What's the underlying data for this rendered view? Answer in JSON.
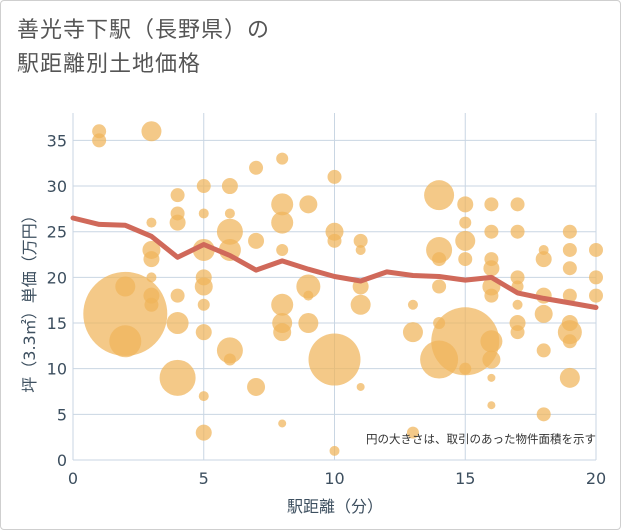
{
  "title": {
    "line1": "善光寺下駅（長野県）の",
    "line2": "駅距離別土地価格"
  },
  "chart_data": {
    "type": "scatter",
    "title": "善光寺下駅（長野県）の駅距離別土地価格",
    "xlabel": "駅距離（分）",
    "ylabel": "坪（3.3㎡）単価（万円）",
    "xlim": [
      0,
      20
    ],
    "ylim": [
      0,
      38
    ],
    "xticks": [
      0,
      5,
      10,
      15,
      20
    ],
    "yticks": [
      0,
      5,
      10,
      15,
      20,
      25,
      30,
      35
    ],
    "grid": true,
    "note": "円の大きさは、取引のあった物件面積を示す",
    "colors": {
      "bubble": "#f0b45a",
      "trend": "#d0695a",
      "grid": "#c9d6e3"
    },
    "bubbles": [
      {
        "x": 1,
        "y": 36,
        "s": 7
      },
      {
        "x": 1,
        "y": 35,
        "s": 7
      },
      {
        "x": 2,
        "y": 16,
        "s": 42
      },
      {
        "x": 2,
        "y": 13,
        "s": 16
      },
      {
        "x": 2,
        "y": 19,
        "s": 10
      },
      {
        "x": 3,
        "y": 36,
        "s": 10
      },
      {
        "x": 3,
        "y": 26,
        "s": 5
      },
      {
        "x": 3,
        "y": 23,
        "s": 9
      },
      {
        "x": 3,
        "y": 22,
        "s": 8
      },
      {
        "x": 3,
        "y": 20,
        "s": 5
      },
      {
        "x": 3,
        "y": 18,
        "s": 8
      },
      {
        "x": 3,
        "y": 17,
        "s": 7
      },
      {
        "x": 4,
        "y": 29,
        "s": 7
      },
      {
        "x": 4,
        "y": 27,
        "s": 7
      },
      {
        "x": 4,
        "y": 26,
        "s": 8
      },
      {
        "x": 4,
        "y": 18,
        "s": 7
      },
      {
        "x": 4,
        "y": 15,
        "s": 11
      },
      {
        "x": 4,
        "y": 9,
        "s": 18
      },
      {
        "x": 5,
        "y": 30,
        "s": 7
      },
      {
        "x": 5,
        "y": 27,
        "s": 5
      },
      {
        "x": 5,
        "y": 23,
        "s": 11
      },
      {
        "x": 5,
        "y": 20,
        "s": 8
      },
      {
        "x": 5,
        "y": 19,
        "s": 9
      },
      {
        "x": 5,
        "y": 17,
        "s": 6
      },
      {
        "x": 5,
        "y": 14,
        "s": 8
      },
      {
        "x": 5,
        "y": 7,
        "s": 5
      },
      {
        "x": 5,
        "y": 3,
        "s": 8
      },
      {
        "x": 6,
        "y": 30,
        "s": 8
      },
      {
        "x": 6,
        "y": 27,
        "s": 5
      },
      {
        "x": 6,
        "y": 25,
        "s": 13
      },
      {
        "x": 6,
        "y": 23,
        "s": 11
      },
      {
        "x": 6,
        "y": 12,
        "s": 13
      },
      {
        "x": 6,
        "y": 11,
        "s": 6
      },
      {
        "x": 7,
        "y": 32,
        "s": 7
      },
      {
        "x": 7,
        "y": 24,
        "s": 8
      },
      {
        "x": 7,
        "y": 8,
        "s": 9
      },
      {
        "x": 8,
        "y": 33,
        "s": 6
      },
      {
        "x": 8,
        "y": 28,
        "s": 11
      },
      {
        "x": 8,
        "y": 26,
        "s": 11
      },
      {
        "x": 8,
        "y": 23,
        "s": 6
      },
      {
        "x": 8,
        "y": 17,
        "s": 11
      },
      {
        "x": 8,
        "y": 15,
        "s": 10
      },
      {
        "x": 8,
        "y": 14,
        "s": 9
      },
      {
        "x": 8,
        "y": 4,
        "s": 4
      },
      {
        "x": 9,
        "y": 28,
        "s": 9
      },
      {
        "x": 9,
        "y": 19,
        "s": 12
      },
      {
        "x": 9,
        "y": 18,
        "s": 5
      },
      {
        "x": 9,
        "y": 15,
        "s": 10
      },
      {
        "x": 10,
        "y": 31,
        "s": 7
      },
      {
        "x": 10,
        "y": 25,
        "s": 9
      },
      {
        "x": 10,
        "y": 24,
        "s": 7
      },
      {
        "x": 10,
        "y": 11,
        "s": 26
      },
      {
        "x": 10,
        "y": 1,
        "s": 5
      },
      {
        "x": 11,
        "y": 24,
        "s": 7
      },
      {
        "x": 11,
        "y": 23,
        "s": 5
      },
      {
        "x": 11,
        "y": 19,
        "s": 8
      },
      {
        "x": 11,
        "y": 17,
        "s": 10
      },
      {
        "x": 11,
        "y": 8,
        "s": 4
      },
      {
        "x": 13,
        "y": 17,
        "s": 5
      },
      {
        "x": 13,
        "y": 14,
        "s": 10
      },
      {
        "x": 13,
        "y": 3,
        "s": 6
      },
      {
        "x": 14,
        "y": 29,
        "s": 15
      },
      {
        "x": 14,
        "y": 23,
        "s": 13
      },
      {
        "x": 14,
        "y": 22,
        "s": 7
      },
      {
        "x": 14,
        "y": 19,
        "s": 7
      },
      {
        "x": 14,
        "y": 15,
        "s": 6
      },
      {
        "x": 14,
        "y": 11,
        "s": 19
      },
      {
        "x": 15,
        "y": 28,
        "s": 8
      },
      {
        "x": 15,
        "y": 26,
        "s": 6
      },
      {
        "x": 15,
        "y": 24,
        "s": 10
      },
      {
        "x": 15,
        "y": 22,
        "s": 7
      },
      {
        "x": 15,
        "y": 13,
        "s": 34
      },
      {
        "x": 15,
        "y": 10,
        "s": 6
      },
      {
        "x": 16,
        "y": 28,
        "s": 7
      },
      {
        "x": 16,
        "y": 25,
        "s": 7
      },
      {
        "x": 16,
        "y": 22,
        "s": 7
      },
      {
        "x": 16,
        "y": 21,
        "s": 8
      },
      {
        "x": 16,
        "y": 19,
        "s": 9
      },
      {
        "x": 16,
        "y": 18,
        "s": 7
      },
      {
        "x": 16,
        "y": 13,
        "s": 11
      },
      {
        "x": 16,
        "y": 11,
        "s": 9
      },
      {
        "x": 16,
        "y": 9,
        "s": 4
      },
      {
        "x": 16,
        "y": 6,
        "s": 4
      },
      {
        "x": 17,
        "y": 28,
        "s": 7
      },
      {
        "x": 17,
        "y": 25,
        "s": 7
      },
      {
        "x": 17,
        "y": 20,
        "s": 7
      },
      {
        "x": 17,
        "y": 19,
        "s": 6
      },
      {
        "x": 17,
        "y": 17,
        "s": 5
      },
      {
        "x": 17,
        "y": 15,
        "s": 8
      },
      {
        "x": 17,
        "y": 14,
        "s": 7
      },
      {
        "x": 18,
        "y": 23,
        "s": 5
      },
      {
        "x": 18,
        "y": 22,
        "s": 8
      },
      {
        "x": 18,
        "y": 18,
        "s": 8
      },
      {
        "x": 18,
        "y": 16,
        "s": 9
      },
      {
        "x": 18,
        "y": 12,
        "s": 7
      },
      {
        "x": 18,
        "y": 5,
        "s": 7
      },
      {
        "x": 19,
        "y": 25,
        "s": 7
      },
      {
        "x": 19,
        "y": 23,
        "s": 7
      },
      {
        "x": 19,
        "y": 21,
        "s": 7
      },
      {
        "x": 19,
        "y": 18,
        "s": 7
      },
      {
        "x": 19,
        "y": 15,
        "s": 8
      },
      {
        "x": 19,
        "y": 14,
        "s": 12
      },
      {
        "x": 19,
        "y": 13,
        "s": 7
      },
      {
        "x": 19,
        "y": 9,
        "s": 10
      },
      {
        "x": 20,
        "y": 23,
        "s": 7
      },
      {
        "x": 20,
        "y": 20,
        "s": 7
      },
      {
        "x": 20,
        "y": 18,
        "s": 7
      }
    ],
    "series": [
      {
        "name": "trend",
        "x": [
          0,
          1,
          2,
          3,
          4,
          5,
          6,
          7,
          8,
          9,
          10,
          11,
          12,
          13,
          14,
          15,
          16,
          17,
          18,
          19,
          20
        ],
        "values": [
          26.5,
          25.8,
          25.7,
          24.5,
          22.2,
          23.6,
          22.4,
          20.8,
          21.8,
          20.9,
          20.1,
          19.6,
          20.6,
          20.2,
          20.1,
          19.7,
          20.0,
          18.3,
          17.7,
          17.2,
          16.7
        ]
      }
    ]
  }
}
